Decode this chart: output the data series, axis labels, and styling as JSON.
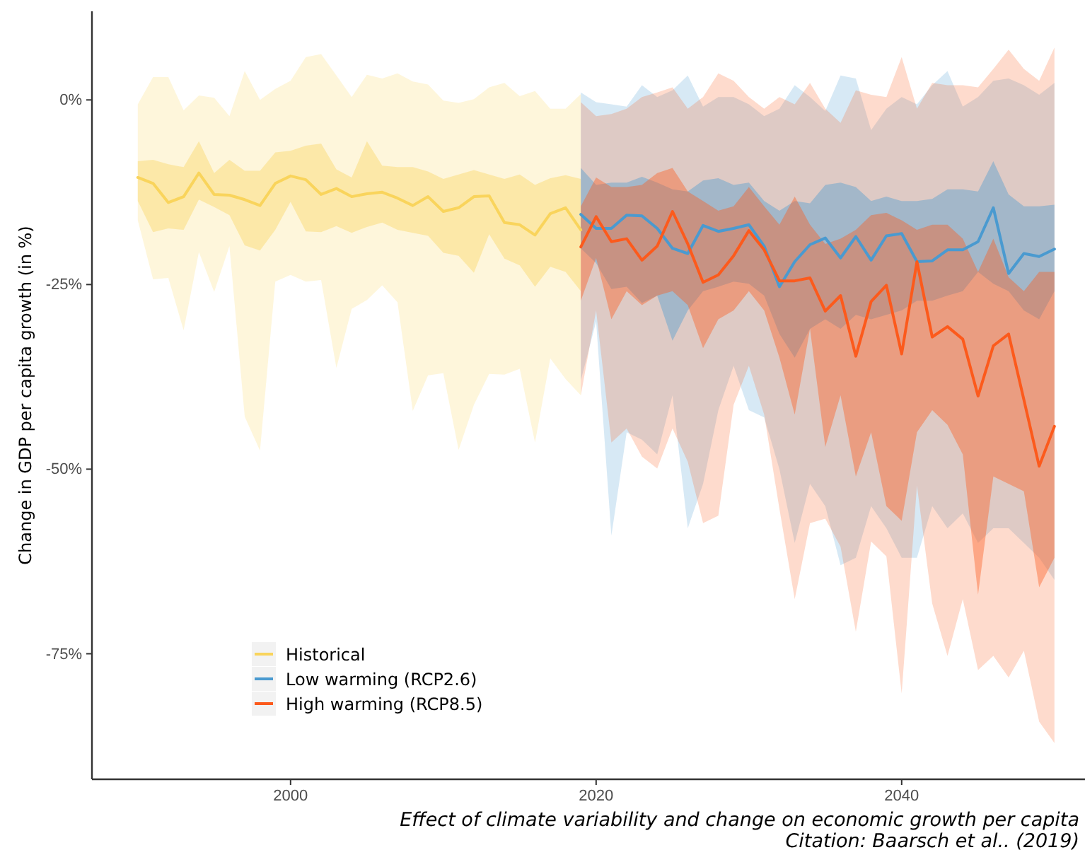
{
  "chart_data": {
    "type": "line",
    "ylabel": "Change in GDP per capita growth (in %)",
    "xlim": [
      1987,
      2052
    ],
    "xticks": [
      2000,
      2020,
      2040
    ],
    "ylim": [
      -92,
      12
    ],
    "yticks": [
      {
        "value": 0,
        "label": "0%"
      },
      {
        "value": -25,
        "label": "-25%"
      },
      {
        "value": -50,
        "label": "-50%"
      },
      {
        "value": -75,
        "label": "-75%"
      }
    ],
    "legend": "bottom left",
    "annotations": [
      "Effect of climate variability and change on economic growth per capita",
      "Citation: Baarsch et al.. (2019)"
    ],
    "series": [
      {
        "color": "#f9d45c",
        "x": [
          1990,
          1991,
          1992,
          1993,
          1994,
          1995,
          1996,
          1997,
          1998,
          1999,
          2000,
          2001,
          2002,
          2003,
          2004,
          2005,
          2006,
          2007,
          2008,
          2009,
          2010,
          2011,
          2012,
          2013,
          2014,
          2015,
          2016,
          2017,
          2018,
          2019
        ],
        "values": [
          null,
          null,
          null,
          null,
          null,
          null,
          null,
          null,
          null,
          null,
          null,
          null,
          null,
          null,
          null,
          null,
          null,
          null,
          null,
          null,
          null,
          null,
          null,
          null,
          null,
          null,
          null,
          null,
          null,
          null
        ],
        "lower": [
          -16.3,
          -24.3,
          -24.1,
          -31.2,
          -20.6,
          -26.0,
          -19.8,
          -42.9,
          -47.5,
          -24.6,
          -23.7,
          -24.6,
          -24.4,
          -36.3,
          -28.3,
          -27.1,
          -25.1,
          -27.4,
          -42.1,
          -37.3,
          -37.0,
          -47.4,
          -41.3,
          -37.1,
          -37.2,
          -36.4,
          -46.4,
          -35.0,
          -37.8,
          -40.0
        ],
        "upper": [
          -0.6,
          3.1,
          3.1,
          -1.4,
          0.6,
          0.3,
          -2.2,
          3.9,
          0.0,
          1.5,
          2.6,
          5.8,
          6.2,
          3.3,
          0.4,
          3.4,
          2.9,
          3.6,
          2.5,
          2.1,
          -0.1,
          -0.4,
          0.1,
          1.7,
          2.3,
          0.5,
          1.2,
          -1.2,
          -1.2,
          0.8
        ]
      },
      {
        "color": "#4a9ad0",
        "x": [
          2019,
          2020,
          2021,
          2022,
          2023,
          2024,
          2025,
          2026,
          2027,
          2028,
          2029,
          2030,
          2031,
          2032,
          2033,
          2034,
          2035,
          2036,
          2037,
          2038,
          2039,
          2040,
          2041,
          2042,
          2043,
          2044,
          2045,
          2046,
          2047,
          2048,
          2049,
          2050
        ],
        "values": [
          null,
          null,
          null,
          null,
          null,
          null,
          null,
          null,
          null,
          null,
          null,
          null,
          null,
          null,
          null,
          null,
          null,
          null,
          null,
          null,
          null,
          null,
          null,
          null,
          null,
          null,
          null,
          null,
          null,
          null,
          null,
          null
        ],
        "lower": [
          -38,
          -30,
          -59,
          -45,
          -46,
          -48,
          -40,
          -58,
          -52,
          -42,
          -36,
          -42,
          -43,
          -50,
          -60,
          -52,
          -55,
          -63,
          -62,
          -55,
          -58,
          -62,
          -62,
          -55,
          -58,
          -56,
          -60,
          -58,
          -58,
          -60,
          -62,
          -65
        ],
        "upper": [
          1.0,
          -0.3,
          -0.6,
          -0.9,
          2.0,
          0.4,
          1.3,
          3.3,
          -0.9,
          0.4,
          0.4,
          -0.6,
          -2.2,
          -1.2,
          2.0,
          0.4,
          -1.5,
          3.3,
          2.9,
          -4.1,
          -1.2,
          0.4,
          -0.6,
          2.0,
          3.9,
          -0.9,
          0.4,
          2.6,
          2.9,
          2.0,
          0.7,
          2.3
        ]
      },
      {
        "color": "#fc5a1c",
        "x": [
          2019,
          2020,
          2021,
          2022,
          2023,
          2024,
          2025,
          2026,
          2027,
          2028,
          2029,
          2030,
          2031,
          2032,
          2033,
          2034,
          2035,
          2036,
          2037,
          2038,
          2039,
          2040,
          2041,
          2042,
          2043,
          2044,
          2045,
          2046,
          2047,
          2048,
          2049,
          2050
        ],
        "values": [
          null,
          null,
          null,
          null,
          null,
          null,
          null,
          null,
          null,
          null,
          null,
          null,
          null,
          null,
          null,
          null,
          null,
          null,
          null,
          null,
          null,
          null,
          null,
          null,
          null,
          null,
          null,
          null,
          null,
          null,
          null,
          null
        ],
        "lower": [
          -40,
          -28.5,
          -46.4,
          -44.5,
          -48.3,
          -49.9,
          -44.5,
          -49,
          -57.3,
          -56.3,
          -41.3,
          -36,
          -42.6,
          -55.4,
          -67.6,
          -57.3,
          -56.7,
          -60.5,
          -72.0,
          -59.8,
          -61.8,
          -80.4,
          -52.2,
          -68.2,
          -75.3,
          -67.6,
          -77.2,
          -75.3,
          -78.2,
          -74.6,
          -84.2,
          -87.1
        ],
        "upper": [
          -0.3,
          -2.2,
          -1.9,
          -1.2,
          0.4,
          1.0,
          1.7,
          -1.2,
          0.4,
          3.6,
          2.6,
          0.4,
          -1.2,
          0.4,
          -0.6,
          2.3,
          -1.2,
          -3.1,
          1.3,
          0.7,
          0.4,
          5.8,
          -1.2,
          2.3,
          2.0,
          2.0,
          1.7,
          4.2,
          6.8,
          4.2,
          2.6,
          7.1
        ]
      },
      {
        "name": "Historical",
        "color": "#f9d45c",
        "x": [
          1990,
          1991,
          1992,
          1993,
          1994,
          1995,
          1996,
          1997,
          1998,
          1999,
          2000,
          2001,
          2002,
          2003,
          2004,
          2005,
          2006,
          2007,
          2008,
          2009,
          2010,
          2011,
          2012,
          2013,
          2014,
          2015,
          2016,
          2017,
          2018,
          2019
        ],
        "values": [
          -10.5,
          -11.3,
          -13.9,
          -13.1,
          -9.9,
          -12.8,
          -12.9,
          -13.5,
          -14.3,
          -11.3,
          -10.3,
          -10.8,
          -12.8,
          -12.0,
          -13.1,
          -12.7,
          -12.5,
          -13.3,
          -14.3,
          -13.1,
          -15.1,
          -14.6,
          -13.1,
          -13.0,
          -16.6,
          -16.9,
          -18.3,
          -15.4,
          -14.6,
          -17.6
        ],
        "lower": [
          -13.7,
          -17.9,
          -17.4,
          -17.6,
          -13.5,
          -14.5,
          -15.6,
          -19.7,
          -20.4,
          -17.6,
          -13.8,
          -17.8,
          -17.9,
          -17.1,
          -18.0,
          -17.2,
          -16.6,
          -17.6,
          -18.0,
          -18.4,
          -20.7,
          -21.1,
          -23.4,
          -18.2,
          -21.5,
          -22.4,
          -25.3,
          -22.6,
          -23.3,
          -25.9
        ],
        "upper": [
          -8.3,
          -8.1,
          -8.7,
          -9.1,
          -5.6,
          -9.9,
          -8.1,
          -9.6,
          -9.6,
          -7.1,
          -6.9,
          -6.2,
          -5.9,
          -9.4,
          -10.5,
          -5.6,
          -8.9,
          -9.1,
          -9.1,
          -9.7,
          -10.7,
          -10.1,
          -9.5,
          -10.1,
          -10.7,
          -10.1,
          -11.5,
          -10.6,
          -10.2,
          -10.7
        ]
      },
      {
        "name": "Low warming (RCP2.6)",
        "color": "#4a9ad0",
        "x": [
          2019,
          2020,
          2021,
          2022,
          2023,
          2024,
          2025,
          2026,
          2027,
          2028,
          2029,
          2030,
          2031,
          2032,
          2033,
          2034,
          2035,
          2036,
          2037,
          2038,
          2039,
          2040,
          2041,
          2042,
          2043,
          2044,
          2045,
          2046,
          2047,
          2048,
          2049,
          2050
        ],
        "values": [
          -15.5,
          -17.4,
          -17.4,
          -15.6,
          -15.7,
          -17.4,
          -20.1,
          -20.8,
          -17.0,
          -17.8,
          -17.4,
          -16.9,
          -19.8,
          -25.3,
          -21.9,
          -19.6,
          -18.7,
          -21.4,
          -18.5,
          -21.7,
          -18.4,
          -18.1,
          -21.9,
          -21.8,
          -20.3,
          -20.3,
          -19.2,
          -14.6,
          -23.5,
          -20.8,
          -21.2,
          -20.2
        ],
        "lower": [
          -20.1,
          -22.1,
          -25.6,
          -25.3,
          -27.5,
          -26.5,
          -32.6,
          -28.5,
          -25.9,
          -25.3,
          -24.6,
          -24.9,
          -26.5,
          -31.7,
          -34.9,
          -31.0,
          -29.7,
          -31.0,
          -29.1,
          -29.7,
          -29.1,
          -28.5,
          -27.2,
          -27.2,
          -26.5,
          -25.9,
          -23.3,
          -24.9,
          -25.9,
          -28.5,
          -29.7,
          -25.9
        ],
        "upper": [
          -9.2,
          -11.5,
          -11.2,
          -11.2,
          -10.4,
          -11.2,
          -12.1,
          -12.4,
          -10.9,
          -10.6,
          -11.5,
          -11.2,
          -13.7,
          -15.0,
          -13.7,
          -14.0,
          -11.5,
          -11.2,
          -11.8,
          -13.7,
          -13.1,
          -13.7,
          -13.7,
          -13.4,
          -12.1,
          -12.1,
          -12.4,
          -8.3,
          -12.8,
          -14.4,
          -14.4,
          -14.2
        ]
      },
      {
        "name": "High warming (RCP8.5)",
        "color": "#fc5a1c",
        "x": [
          2019,
          2020,
          2021,
          2022,
          2023,
          2024,
          2025,
          2026,
          2027,
          2028,
          2029,
          2030,
          2031,
          2032,
          2033,
          2034,
          2035,
          2036,
          2037,
          2038,
          2039,
          2040,
          2041,
          2042,
          2043,
          2044,
          2045,
          2046,
          2047,
          2048,
          2049,
          2050
        ],
        "values": [
          -19.9,
          -15.8,
          -19.2,
          -18.8,
          -21.7,
          -19.8,
          -15.1,
          -19.5,
          -24.7,
          -23.7,
          -21.1,
          -17.7,
          -20.3,
          -24.5,
          -24.5,
          -24.1,
          -28.6,
          -26.5,
          -34.7,
          -27.3,
          -25.1,
          -34.4,
          -21.9,
          -32.1,
          -30.7,
          -32.4,
          -40.1,
          -33.3,
          -31.7,
          -40.6,
          -49.6,
          -44.2
        ],
        "lower": [
          -27.2,
          -21.4,
          -29.7,
          -25.9,
          -27.8,
          -26.5,
          -25.9,
          -27.8,
          -33.6,
          -29.7,
          -28.5,
          -25.9,
          -28.5,
          -34.9,
          -42.6,
          -31.0,
          -47,
          -40,
          -51,
          -45,
          -55,
          -57,
          -45,
          -42,
          -44,
          -48,
          -67,
          -51,
          -52,
          -53,
          -66,
          -62
        ],
        "upper": [
          -14.4,
          -10.5,
          -11.8,
          -11.8,
          -11.5,
          -9.9,
          -9.2,
          -12.4,
          -13.7,
          -15.0,
          -14.4,
          -11.8,
          -14.4,
          -16.9,
          -13.1,
          -16.9,
          -19.5,
          -18.8,
          -17.6,
          -15.6,
          -15.3,
          -16.3,
          -17.6,
          -16.9,
          -16.9,
          -18.8,
          -23.3,
          -18.8,
          -24.0,
          -25.9,
          -23.3,
          -23.3
        ]
      }
    ]
  }
}
